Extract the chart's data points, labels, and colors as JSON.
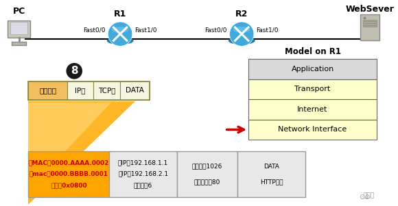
{
  "pc_label": "PC",
  "ws_label": "WebSever",
  "r1_label": "R1",
  "r2_label": "R2",
  "model_title": "Model on R1",
  "model_layers": [
    "Application",
    "Transport",
    "Internet",
    "Network Interface"
  ],
  "model_colors": [
    "#d9d9d9",
    "#ffffcc",
    "#ffffcc",
    "#ffffcc"
  ],
  "fast_labels_r1": [
    "Fast0/0",
    "Fast1/0"
  ],
  "fast_labels_r2": [
    "Fast0/0",
    "Fast1/0"
  ],
  "pkt_labels": [
    "以太网头",
    "IP头",
    "TCP头",
    "DATA"
  ],
  "pkt_colors": [
    "#f0c060",
    "#f5f5e0",
    "#f5f5e0",
    "#f5f5e0"
  ],
  "circle8_label": "8",
  "bottom_cells": [
    {
      "lines": [
        "源MAC：0000.AAAA.0002",
        "目mac：0000.BBBB.0001",
        "类型：0x0800"
      ],
      "bg": "#ffa500",
      "tc": "#cc0000",
      "bold": true
    },
    {
      "lines": [
        "源IP：192.168.1.1",
        "目IP：192.168.2.1",
        "协议号：6"
      ],
      "bg": "#e8e8e8",
      "tc": "#000000",
      "bold": false
    },
    {
      "lines": [
        "源端口号1026",
        "目的端口号80"
      ],
      "bg": "#e8e8e8",
      "tc": "#000000",
      "bold": false
    },
    {
      "lines": [
        "DATA",
        "HTTP荷载"
      ],
      "bg": "#e8e8e8",
      "tc": "#000000",
      "bold": false
    }
  ],
  "watermark": "亿速云",
  "router_body_color": "#40aadd",
  "router_rim_color": "#2080aa",
  "router_cross_color": "#ffffff",
  "line_color": "#000000",
  "arrow_color": "#cc0000"
}
